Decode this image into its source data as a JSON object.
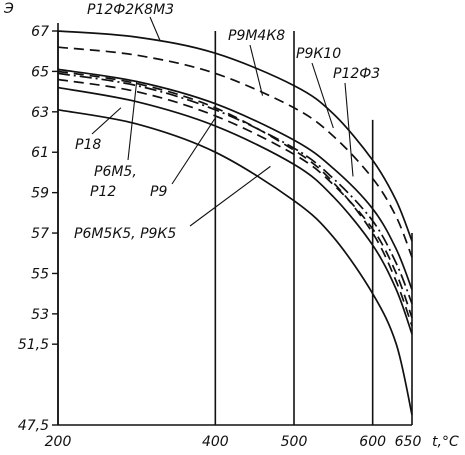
{
  "chart_data": {
    "type": "line",
    "xlabel": "t,°C",
    "ylabel": "Э",
    "xlim": [
      200,
      650
    ],
    "ylim": [
      47.5,
      67
    ],
    "x_ticks": [
      {
        "value": 200,
        "label": "200"
      },
      {
        "value": 400,
        "label": "400"
      },
      {
        "value": 500,
        "label": "500"
      },
      {
        "value": 600,
        "label": "600"
      },
      {
        "value": 650,
        "label": "650"
      }
    ],
    "y_ticks": [
      {
        "value": 67,
        "label": "67"
      },
      {
        "value": 65,
        "label": "65"
      },
      {
        "value": 63,
        "label": "63"
      },
      {
        "value": 61,
        "label": "61"
      },
      {
        "value": 59,
        "label": "59"
      },
      {
        "value": 57,
        "label": "57"
      },
      {
        "value": 55,
        "label": "55"
      },
      {
        "value": 53,
        "label": "53"
      },
      {
        "value": 51.5,
        "label": "51,5"
      },
      {
        "value": 47.5,
        "label": "47,5"
      }
    ],
    "vertical_gridlines": [
      200,
      400,
      500,
      600,
      650
    ],
    "series": [
      {
        "name": "Р12Ф2К8М3",
        "style": "solid",
        "points": [
          [
            200,
            67.0
          ],
          [
            300,
            66.7
          ],
          [
            400,
            65.9
          ],
          [
            500,
            64.3
          ],
          [
            550,
            62.9
          ],
          [
            600,
            60.6
          ],
          [
            630,
            58.6
          ],
          [
            650,
            56.6
          ]
        ]
      },
      {
        "name": "Р9М4К8",
        "style": "dash",
        "points": [
          [
            200,
            66.2
          ],
          [
            300,
            65.8
          ],
          [
            400,
            64.9
          ],
          [
            500,
            63.2
          ],
          [
            550,
            61.8
          ],
          [
            600,
            59.7
          ],
          [
            630,
            57.8
          ],
          [
            650,
            55.8
          ]
        ]
      },
      {
        "name": "Р9К10",
        "style": "solid",
        "points": [
          [
            200,
            65.1
          ],
          [
            300,
            64.5
          ],
          [
            400,
            63.4
          ],
          [
            500,
            61.6
          ],
          [
            550,
            60.2
          ],
          [
            600,
            58.2
          ],
          [
            630,
            56.2
          ],
          [
            650,
            54.2
          ]
        ]
      },
      {
        "name": "Р12Ф3",
        "style": "dashdot",
        "points": [
          [
            200,
            64.9
          ],
          [
            300,
            64.3
          ],
          [
            400,
            63.1
          ],
          [
            500,
            61.2
          ],
          [
            550,
            59.7
          ],
          [
            600,
            57.6
          ],
          [
            630,
            55.5
          ],
          [
            650,
            53.5
          ]
        ]
      },
      {
        "name": "Р6М5, Р12",
        "style": "dash",
        "points": [
          [
            200,
            64.6
          ],
          [
            300,
            64.0
          ],
          [
            400,
            62.8
          ],
          [
            500,
            60.9
          ],
          [
            550,
            59.4
          ],
          [
            600,
            57.2
          ],
          [
            630,
            55.0
          ],
          [
            650,
            52.8
          ]
        ]
      },
      {
        "name": "Р18",
        "style": "solid",
        "points": [
          [
            200,
            64.2
          ],
          [
            300,
            63.5
          ],
          [
            400,
            62.3
          ],
          [
            500,
            60.4
          ],
          [
            550,
            58.8
          ],
          [
            600,
            56.4
          ],
          [
            630,
            54.2
          ],
          [
            650,
            52.0
          ]
        ]
      },
      {
        "name": "Р9",
        "style": "dash",
        "points": [
          [
            200,
            65.0
          ],
          [
            300,
            64.4
          ],
          [
            400,
            63.2
          ],
          [
            500,
            61.1
          ],
          [
            550,
            59.5
          ],
          [
            600,
            57.0
          ],
          [
            630,
            54.6
          ],
          [
            650,
            52.4
          ]
        ]
      },
      {
        "name": "Р6М5К5, Р9К5",
        "style": "solid",
        "points": [
          [
            200,
            63.1
          ],
          [
            300,
            62.4
          ],
          [
            400,
            61.0
          ],
          [
            500,
            58.6
          ],
          [
            550,
            56.8
          ],
          [
            600,
            54.0
          ],
          [
            630,
            51.5
          ],
          [
            650,
            48.0
          ]
        ]
      }
    ],
    "annotations": [
      {
        "id": "r12f2k8m3",
        "text": "Р12Ф2К8М3"
      },
      {
        "id": "r9m4k8",
        "text": "Р9М4К8"
      },
      {
        "id": "r9k10",
        "text": "Р9К10"
      },
      {
        "id": "r12f3",
        "text": "Р12Ф3"
      },
      {
        "id": "r18",
        "text": "Р18"
      },
      {
        "id": "r6m5",
        "text": "Р6М5,"
      },
      {
        "id": "r12",
        "text": "Р12"
      },
      {
        "id": "r9",
        "text": "Р9"
      },
      {
        "id": "r6m5k5",
        "text": "Р6М5К5, Р9К5"
      }
    ]
  }
}
